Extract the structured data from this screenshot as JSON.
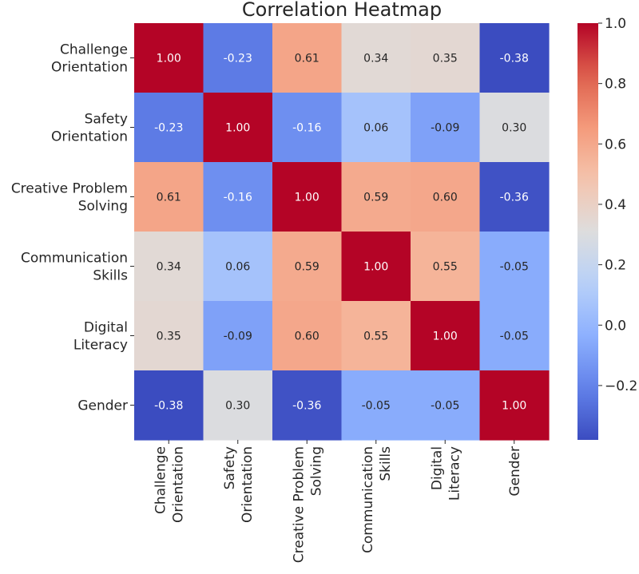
{
  "chart_data": {
    "type": "heatmap",
    "title": "Correlation Heatmap",
    "row_labels": [
      [
        "Challenge",
        "Orientation"
      ],
      [
        "Safety",
        "Orientation"
      ],
      [
        "Creative Problem",
        "Solving"
      ],
      [
        "Communication",
        "Skills"
      ],
      [
        "Digital",
        "Literacy"
      ],
      [
        "Gender"
      ]
    ],
    "col_labels": [
      [
        "Challenge",
        "Orientation"
      ],
      [
        "Safety",
        "Orientation"
      ],
      [
        "Creative Problem",
        "Solving"
      ],
      [
        "Communication",
        "Skills"
      ],
      [
        "Digital",
        "Literacy"
      ],
      [
        "Gender"
      ]
    ],
    "values": [
      [
        1.0,
        -0.23,
        0.61,
        0.34,
        0.35,
        -0.38
      ],
      [
        -0.23,
        1.0,
        -0.16,
        0.06,
        -0.09,
        0.3
      ],
      [
        0.61,
        -0.16,
        1.0,
        0.59,
        0.6,
        -0.36
      ],
      [
        0.34,
        0.06,
        0.59,
        1.0,
        0.55,
        -0.05
      ],
      [
        0.35,
        -0.09,
        0.6,
        0.55,
        1.0,
        -0.05
      ],
      [
        -0.38,
        0.3,
        -0.36,
        -0.05,
        -0.05,
        1.0
      ]
    ],
    "colormap": "coolwarm",
    "vmin": -0.38,
    "vmax": 1.0,
    "colorbar_ticks": [
      1.0,
      0.8,
      0.6,
      0.4,
      0.2,
      0.0,
      -0.2
    ],
    "colorbar_tick_labels": [
      "1.0",
      "0.8",
      "0.6",
      "0.4",
      "0.2",
      "0.0",
      "−0.2"
    ],
    "annotation_format": "0.00"
  }
}
